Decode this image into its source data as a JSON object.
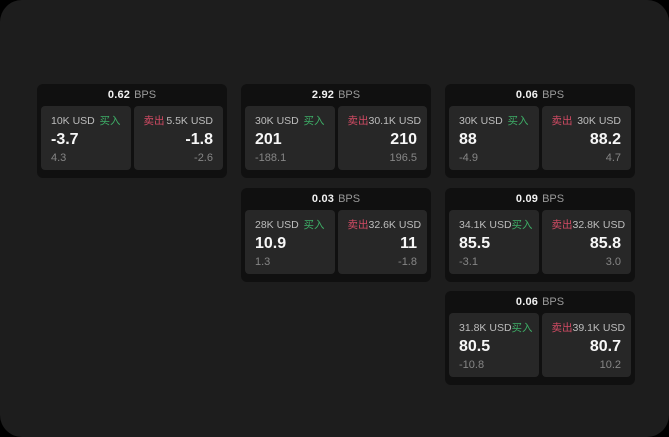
{
  "labels": {
    "bps": "BPS",
    "buy": "买入",
    "sell": "卖出"
  },
  "colors": {
    "page_bg": "#000000",
    "canvas_bg": "#1d1d1d",
    "card_bg": "#101010",
    "panel_bg": "#272727",
    "buy_green": "#3eae67",
    "sell_red": "#d24b64",
    "value_white": "#f7f7f7",
    "label_gray": "#bdbdbd",
    "delta_gray": "#868686"
  },
  "cards": [
    {
      "bps": "0.62",
      "buy": {
        "amount": "10K USD",
        "value": "-3.7",
        "delta": "4.3"
      },
      "sell": {
        "amount": "5.5K USD",
        "value": "-1.8",
        "delta": "-2.6"
      }
    },
    {
      "bps": "2.92",
      "buy": {
        "amount": "30K USD",
        "value": "201",
        "delta": "-188.1"
      },
      "sell": {
        "amount": "30.1K USD",
        "value": "210",
        "delta": "196.5"
      }
    },
    {
      "bps": "0.06",
      "buy": {
        "amount": "30K USD",
        "value": "88",
        "delta": "-4.9"
      },
      "sell": {
        "amount": "30K USD",
        "value": "88.2",
        "delta": "4.7"
      }
    },
    {
      "bps": "0.03",
      "buy": {
        "amount": "28K USD",
        "value": "10.9",
        "delta": "1.3"
      },
      "sell": {
        "amount": "32.6K USD",
        "value": "11",
        "delta": "-1.8"
      }
    },
    {
      "bps": "0.09",
      "buy": {
        "amount": "34.1K USD",
        "value": "85.5",
        "delta": "-3.1"
      },
      "sell": {
        "amount": "32.8K USD",
        "value": "85.8",
        "delta": "3.0"
      }
    },
    {
      "bps": "0.06",
      "buy": {
        "amount": "31.8K USD",
        "value": "80.5",
        "delta": "-10.8"
      },
      "sell": {
        "amount": "39.1K USD",
        "value": "80.7",
        "delta": "10.2"
      }
    }
  ]
}
